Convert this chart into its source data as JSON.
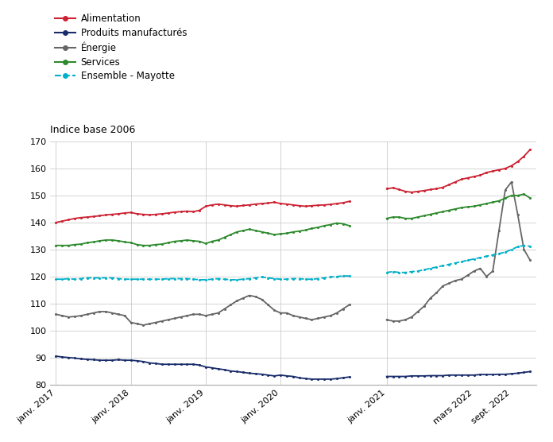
{
  "title": "Indice base 2006",
  "background_color": "#ffffff",
  "grid_color": "#cccccc",
  "ylim": [
    80,
    170
  ],
  "yticks": [
    80,
    90,
    100,
    110,
    120,
    130,
    140,
    150,
    160,
    170
  ],
  "series": {
    "Alimentation": {
      "color": "#cc2233",
      "linestyle": "-",
      "marker": "o",
      "markersize": 2.5,
      "linewidth": 1.4,
      "values_2017": [
        140.0,
        140.5,
        141.0,
        141.5,
        141.8,
        142.0,
        142.2,
        142.5,
        142.8,
        143.0,
        143.2,
        143.5
      ],
      "values_2018": [
        143.7,
        143.2,
        143.0,
        142.8,
        143.0,
        143.2,
        143.5,
        143.8,
        144.0,
        144.2,
        144.0,
        144.5
      ],
      "values_2019": [
        146.0,
        146.5,
        146.8,
        146.5,
        146.2,
        146.0,
        146.3,
        146.5,
        146.8,
        147.0,
        147.2,
        147.5
      ],
      "values_2020": [
        147.0,
        146.8,
        146.5,
        146.2,
        146.0,
        146.2,
        146.4,
        146.5,
        146.7,
        147.0,
        147.3,
        147.8
      ],
      "values_2021": [
        152.5,
        152.8,
        152.2,
        151.5,
        151.2,
        151.5,
        151.8,
        152.2,
        152.5,
        153.0,
        154.0,
        155.0
      ],
      "values_2022_full": [
        156.0,
        156.5,
        157.0,
        157.5,
        158.5,
        159.0,
        159.5,
        160.0,
        161.0,
        162.5,
        164.5,
        167.0
      ]
    },
    "Produits manufactures": {
      "color": "#1a2d6b",
      "linestyle": "-",
      "marker": "o",
      "markersize": 2.5,
      "linewidth": 1.4,
      "values_2017": [
        90.5,
        90.2,
        90.0,
        89.8,
        89.5,
        89.3,
        89.2,
        89.0,
        89.0,
        89.0,
        89.2,
        89.0
      ],
      "values_2018": [
        89.0,
        88.8,
        88.5,
        88.0,
        87.8,
        87.5,
        87.5,
        87.5,
        87.5,
        87.5,
        87.5,
        87.2
      ],
      "values_2019": [
        86.5,
        86.2,
        85.8,
        85.5,
        85.0,
        84.8,
        84.5,
        84.2,
        84.0,
        83.8,
        83.5,
        83.2
      ],
      "values_2020": [
        83.5,
        83.2,
        83.0,
        82.5,
        82.2,
        82.0,
        82.0,
        82.0,
        82.0,
        82.2,
        82.5,
        82.8
      ],
      "values_2021": [
        83.0,
        83.0,
        83.0,
        83.0,
        83.2,
        83.2,
        83.2,
        83.3,
        83.3,
        83.3,
        83.5,
        83.5
      ],
      "values_2022_full": [
        83.5,
        83.5,
        83.5,
        83.7,
        83.7,
        83.7,
        83.8,
        83.8,
        84.0,
        84.2,
        84.5,
        84.8
      ]
    },
    "Energie": {
      "color": "#666666",
      "linestyle": "-",
      "marker": "o",
      "markersize": 2.5,
      "linewidth": 1.4,
      "values_2017": [
        106.0,
        105.5,
        105.0,
        105.2,
        105.5,
        106.0,
        106.5,
        107.0,
        107.0,
        106.5,
        106.0,
        105.5
      ],
      "values_2018": [
        103.0,
        102.5,
        102.0,
        102.5,
        103.0,
        103.5,
        104.0,
        104.5,
        105.0,
        105.5,
        106.0,
        106.0
      ],
      "values_2019": [
        105.5,
        106.0,
        106.5,
        108.0,
        109.5,
        111.0,
        112.0,
        113.0,
        112.5,
        111.5,
        109.5,
        107.5
      ],
      "values_2020": [
        106.5,
        106.5,
        105.5,
        105.0,
        104.5,
        104.0,
        104.5,
        105.0,
        105.5,
        106.5,
        108.0,
        109.5
      ],
      "values_2021": [
        104.0,
        103.5,
        103.5,
        104.0,
        105.0,
        107.0,
        109.0,
        112.0,
        114.0,
        116.5,
        117.5,
        118.5
      ],
      "values_2022_full": [
        119.0,
        120.5,
        122.0,
        123.0,
        120.0,
        122.0,
        137.0,
        152.0,
        155.0,
        143.0,
        130.0,
        126.0
      ]
    },
    "Services": {
      "color": "#2d8a2d",
      "linestyle": "-",
      "marker": "o",
      "markersize": 2.5,
      "linewidth": 1.4,
      "values_2017": [
        131.5,
        131.5,
        131.5,
        131.8,
        132.0,
        132.5,
        132.8,
        133.2,
        133.5,
        133.5,
        133.2,
        132.8
      ],
      "values_2018": [
        132.5,
        131.8,
        131.5,
        131.5,
        131.8,
        132.0,
        132.5,
        133.0,
        133.2,
        133.5,
        133.2,
        133.0
      ],
      "values_2019": [
        132.2,
        133.0,
        133.5,
        134.5,
        135.5,
        136.5,
        137.0,
        137.5,
        137.0,
        136.5,
        136.0,
        135.5
      ],
      "values_2020": [
        135.8,
        136.0,
        136.5,
        136.8,
        137.2,
        137.8,
        138.2,
        138.8,
        139.2,
        139.8,
        139.5,
        138.8
      ],
      "values_2021": [
        141.5,
        142.0,
        142.0,
        141.5,
        141.5,
        142.0,
        142.5,
        143.0,
        143.5,
        144.0,
        144.5,
        145.0
      ],
      "values_2022_full": [
        145.5,
        145.8,
        146.0,
        146.5,
        147.0,
        147.5,
        148.0,
        149.0,
        150.0,
        150.0,
        150.5,
        149.0
      ]
    },
    "Ensemble Mayotte": {
      "color": "#00b0c8",
      "linestyle": "--",
      "marker": "o",
      "markersize": 2.5,
      "linewidth": 1.4,
      "values_2017": [
        119.0,
        119.0,
        119.2,
        119.0,
        119.2,
        119.5,
        119.5,
        119.5,
        119.5,
        119.5,
        119.2,
        119.0
      ],
      "values_2018": [
        119.0,
        119.0,
        119.0,
        119.0,
        119.0,
        119.0,
        119.2,
        119.2,
        119.2,
        119.2,
        119.0,
        118.8
      ],
      "values_2019": [
        118.8,
        119.0,
        119.2,
        119.0,
        118.8,
        118.8,
        119.0,
        119.2,
        119.5,
        119.8,
        119.5,
        119.2
      ],
      "values_2020": [
        119.0,
        119.0,
        119.2,
        119.2,
        119.0,
        119.0,
        119.2,
        119.5,
        119.8,
        120.0,
        120.2,
        120.2
      ],
      "values_2021": [
        121.5,
        121.8,
        121.5,
        121.5,
        121.8,
        122.0,
        122.5,
        123.0,
        123.5,
        124.0,
        124.5,
        125.0
      ],
      "values_2022_full": [
        125.5,
        126.0,
        126.5,
        127.0,
        127.5,
        128.0,
        128.5,
        129.0,
        130.0,
        131.0,
        131.5,
        131.2
      ]
    }
  },
  "legend_labels": [
    "Alimentation",
    "Produits manufacturés",
    "Énergie",
    "Services",
    "Ensemble - Mayotte"
  ],
  "legend_colors": [
    "#cc2233",
    "#1a2d6b",
    "#666666",
    "#2d8a2d",
    "#00b0c8"
  ],
  "legend_linestyles": [
    "-",
    "-",
    "-",
    "-",
    "--"
  ]
}
